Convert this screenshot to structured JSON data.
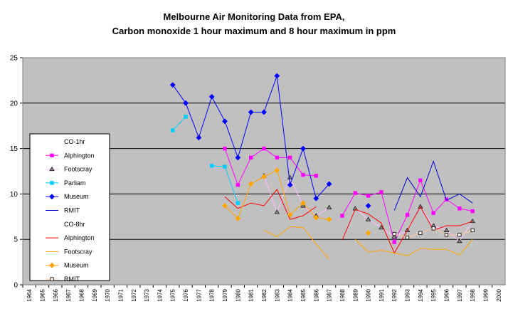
{
  "chart_data": {
    "type": "line",
    "title": "Melbourne Air Monitoring Data from EPA,",
    "subtitle": "Carbon monoxide 1 hour maximum and 8 hour maximum in ppm",
    "xlabel": "",
    "ylabel": "",
    "ylim": [
      0,
      25
    ],
    "yticks": [
      "0",
      "5",
      "10",
      "15",
      "20",
      "25"
    ],
    "xlim": [
      1964,
      2000
    ],
    "xticks": [
      "1964",
      "1965",
      "1966",
      "1967",
      "1968",
      "1969",
      "1970",
      "1971",
      "1972",
      "1973",
      "1974",
      "1975",
      "1976",
      "1977",
      "1978",
      "1979",
      "1980",
      "1981",
      "1982",
      "1983",
      "1984",
      "1985",
      "1986",
      "1987",
      "1988",
      "1989",
      "1990",
      "1991",
      "1992",
      "1993",
      "1994",
      "1995",
      "1996",
      "1997",
      "1998",
      "1999",
      "2000"
    ],
    "grid": "horizontal",
    "legend_position": "left",
    "legend_groups": [
      "CO-1hr",
      "CO-8hr"
    ],
    "background_color": "#c0c0c0",
    "series": [
      {
        "name": "Alphington",
        "group": "CO-1hr",
        "style": "line-marker",
        "marker": "square",
        "color": "#ff00ff",
        "x": [
          1979,
          1980,
          1981,
          1982,
          1983,
          1984,
          1985,
          1986,
          1987,
          1988,
          1989,
          1990,
          1991,
          1992,
          1993,
          1994,
          1995,
          1996,
          1997,
          1998
        ],
        "y": [
          15,
          11,
          14,
          15,
          14,
          14,
          12.1,
          12,
          null,
          7.6,
          10.1,
          9.8,
          10.2,
          4.7,
          7.7,
          11.5,
          7.9,
          9.4,
          8.4,
          8.1
        ]
      },
      {
        "name": "Footscray",
        "group": "CO-1hr",
        "style": "line-marker",
        "marker": "triangle",
        "color": "#ffc0ff",
        "x": [
          1982,
          1983,
          1984,
          1985,
          1986,
          1987,
          1988,
          1989,
          1990,
          1991,
          1992,
          1993,
          1994,
          1995,
          1996,
          1997,
          1998
        ],
        "y": [
          12,
          8,
          11.8,
          8.7,
          7.6,
          8.5,
          null,
          8.4,
          7.2,
          6.3,
          5.3,
          6,
          8.6,
          6.5,
          6,
          4.8,
          7
        ]
      },
      {
        "name": "Parliam",
        "group": "CO-1hr",
        "style": "line-marker",
        "marker": "square",
        "color": "#00ccff",
        "x": [
          1975,
          1976,
          1977,
          1978,
          1979,
          1980
        ],
        "y": [
          17,
          18.5,
          null,
          13.1,
          13,
          9
        ]
      },
      {
        "name": "Museum",
        "group": "CO-1hr",
        "style": "line-marker",
        "marker": "diamond",
        "color": "#0000ff",
        "x": [
          1975,
          1976,
          1977,
          1978,
          1979,
          1980,
          1981,
          1982,
          1983,
          1984,
          1985,
          1986,
          1987,
          1988,
          1989,
          1990
        ],
        "y": [
          22,
          20,
          16.2,
          20.7,
          18,
          14,
          19,
          19,
          23,
          11,
          15,
          9.5,
          11.1,
          null,
          null,
          8.7
        ]
      },
      {
        "name": "RMIT",
        "group": "CO-1hr",
        "style": "line",
        "color": "#0000cc",
        "x": [
          1992,
          1993,
          1994,
          1995,
          1996,
          1997,
          1998
        ],
        "y": [
          8.2,
          11.8,
          9.7,
          13.6,
          9.3,
          10,
          9
        ]
      },
      {
        "name": "Alphington",
        "group": "CO-8hr",
        "style": "line",
        "color": "#ff0000",
        "x": [
          1979,
          1980,
          1981,
          1982,
          1983,
          1984,
          1985,
          1986,
          1987,
          1988,
          1989,
          1990,
          1991,
          1992,
          1993,
          1994,
          1995,
          1996,
          1997,
          1998
        ],
        "y": [
          9.7,
          8.4,
          9,
          8.7,
          10.5,
          7.2,
          7.6,
          8.6,
          null,
          4.9,
          8.3,
          7.8,
          6.8,
          3.5,
          6,
          8.6,
          6,
          6.5,
          6.5,
          7
        ]
      },
      {
        "name": "Footscray",
        "group": "CO-8hr",
        "style": "line",
        "color": "#ffa500",
        "x": [
          1982,
          1983,
          1984,
          1985,
          1986,
          1987,
          1988,
          1989,
          1990,
          1991,
          1992,
          1993,
          1994,
          1995,
          1996,
          1997,
          1998
        ],
        "y": [
          6,
          5.3,
          6.4,
          6.3,
          4.5,
          2.8,
          null,
          5,
          3.6,
          3.8,
          3.5,
          3.2,
          4,
          3.9,
          3.9,
          3.3,
          5
        ]
      },
      {
        "name": "Museum",
        "group": "CO-8hr",
        "style": "line-marker",
        "marker": "diamond",
        "color": "#ffa500",
        "x": [
          1979,
          1980,
          1981,
          1982,
          1983,
          1984,
          1985,
          1986,
          1987,
          1988,
          1989,
          1990
        ],
        "y": [
          8.7,
          7.3,
          11.1,
          11.9,
          12.6,
          7.7,
          9,
          7.4,
          7.2,
          null,
          null,
          5.7
        ]
      },
      {
        "name": "RMIT",
        "group": "CO-8hr",
        "style": "line-marker",
        "marker": "square-open",
        "color": "#ffc896",
        "x": [
          1992,
          1993,
          1994,
          1995,
          1996,
          1997,
          1998
        ],
        "y": [
          5.6,
          5.2,
          5.7,
          6.2,
          5.5,
          5.5,
          6
        ]
      }
    ]
  }
}
